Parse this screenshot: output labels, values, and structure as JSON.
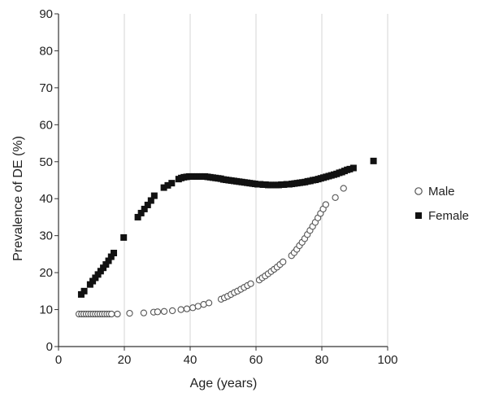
{
  "chart_data": {
    "type": "scatter",
    "title": "",
    "xlabel": "Age (years)",
    "ylabel": "Prevalence of DE (%)",
    "xlim": [
      0,
      100
    ],
    "ylim": [
      0,
      90
    ],
    "x_ticks": [
      0,
      20,
      40,
      60,
      80,
      100
    ],
    "y_ticks": [
      0,
      10,
      20,
      30,
      40,
      50,
      60,
      70,
      80,
      90
    ],
    "grid": "vertical",
    "legend_position": "right",
    "series": [
      {
        "name": "Male",
        "marker": "open-circle",
        "color": "#555555",
        "points": [
          [
            6.2,
            8.8
          ],
          [
            7.0,
            8.8
          ],
          [
            7.7,
            8.8
          ],
          [
            8.4,
            8.8
          ],
          [
            9.1,
            8.8
          ],
          [
            9.8,
            8.8
          ],
          [
            10.5,
            8.8
          ],
          [
            11.2,
            8.8
          ],
          [
            11.9,
            8.8
          ],
          [
            12.6,
            8.8
          ],
          [
            13.3,
            8.8
          ],
          [
            14.0,
            8.8
          ],
          [
            14.7,
            8.8
          ],
          [
            15.4,
            8.8
          ],
          [
            16.1,
            8.8
          ],
          [
            17.9,
            8.8
          ],
          [
            21.6,
            9.0
          ],
          [
            25.9,
            9.1
          ],
          [
            28.9,
            9.3
          ],
          [
            30.1,
            9.4
          ],
          [
            32.1,
            9.5
          ],
          [
            34.6,
            9.7
          ],
          [
            37.2,
            10.0
          ],
          [
            39.0,
            10.2
          ],
          [
            40.8,
            10.5
          ],
          [
            42.4,
            10.9
          ],
          [
            44.1,
            11.4
          ],
          [
            45.7,
            11.8
          ],
          [
            49.4,
            12.8
          ],
          [
            50.4,
            13.2
          ],
          [
            51.4,
            13.6
          ],
          [
            52.4,
            14.1
          ],
          [
            53.4,
            14.6
          ],
          [
            54.4,
            15.0
          ],
          [
            55.4,
            15.5
          ],
          [
            56.4,
            16.0
          ],
          [
            57.4,
            16.5
          ],
          [
            58.4,
            17.0
          ],
          [
            61.0,
            18.0
          ],
          [
            61.9,
            18.6
          ],
          [
            62.8,
            19.1
          ],
          [
            63.7,
            19.7
          ],
          [
            64.6,
            20.3
          ],
          [
            65.5,
            20.9
          ],
          [
            66.4,
            21.5
          ],
          [
            67.3,
            22.2
          ],
          [
            68.2,
            22.9
          ],
          [
            70.8,
            24.6
          ],
          [
            71.6,
            25.4
          ],
          [
            72.4,
            26.3
          ],
          [
            73.2,
            27.3
          ],
          [
            74.0,
            28.2
          ],
          [
            74.8,
            29.2
          ],
          [
            75.6,
            30.3
          ],
          [
            76.4,
            31.4
          ],
          [
            77.2,
            32.5
          ],
          [
            78.0,
            33.6
          ],
          [
            78.8,
            34.8
          ],
          [
            79.6,
            36.0
          ],
          [
            80.4,
            37.2
          ],
          [
            81.2,
            38.4
          ],
          [
            84.1,
            40.3
          ],
          [
            86.6,
            42.8
          ]
        ]
      },
      {
        "name": "Female",
        "marker": "filled-square",
        "color": "#111111",
        "points": [
          [
            6.9,
            14.1
          ],
          [
            7.8,
            15.0
          ],
          [
            9.6,
            16.8
          ],
          [
            10.4,
            17.7
          ],
          [
            11.2,
            18.6
          ],
          [
            12.0,
            19.5
          ],
          [
            12.8,
            20.4
          ],
          [
            13.6,
            21.3
          ],
          [
            14.4,
            22.2
          ],
          [
            15.2,
            23.2
          ],
          [
            16.0,
            24.3
          ],
          [
            16.8,
            25.3
          ],
          [
            19.8,
            29.5
          ],
          [
            24.1,
            35.0
          ],
          [
            25.1,
            36.1
          ],
          [
            26.1,
            37.2
          ],
          [
            27.1,
            38.3
          ],
          [
            28.1,
            39.5
          ],
          [
            29.1,
            40.8
          ],
          [
            32.0,
            43.0
          ],
          [
            33.2,
            43.6
          ],
          [
            34.4,
            44.2
          ],
          [
            36.5,
            45.3
          ],
          [
            37.3,
            45.6
          ],
          [
            38.1,
            45.8
          ],
          [
            38.9,
            45.9
          ],
          [
            39.7,
            46.0
          ],
          [
            40.5,
            46.0
          ],
          [
            41.3,
            46.0
          ],
          [
            42.1,
            46.0
          ],
          [
            42.9,
            46.0
          ],
          [
            43.7,
            46.0
          ],
          [
            44.5,
            46.0
          ],
          [
            45.3,
            45.9
          ],
          [
            46.1,
            45.8
          ],
          [
            46.9,
            45.7
          ],
          [
            47.7,
            45.6
          ],
          [
            48.5,
            45.5
          ],
          [
            49.3,
            45.4
          ],
          [
            50.1,
            45.2
          ],
          [
            50.9,
            45.1
          ],
          [
            51.7,
            45.0
          ],
          [
            52.5,
            44.9
          ],
          [
            53.3,
            44.8
          ],
          [
            54.1,
            44.7
          ],
          [
            54.9,
            44.6
          ],
          [
            55.7,
            44.5
          ],
          [
            56.5,
            44.4
          ],
          [
            57.3,
            44.3
          ],
          [
            58.1,
            44.2
          ],
          [
            58.9,
            44.1
          ],
          [
            59.7,
            44.0
          ],
          [
            60.5,
            43.9
          ],
          [
            61.3,
            43.9
          ],
          [
            62.1,
            43.8
          ],
          [
            62.9,
            43.8
          ],
          [
            63.7,
            43.7
          ],
          [
            64.5,
            43.7
          ],
          [
            65.3,
            43.7
          ],
          [
            66.1,
            43.7
          ],
          [
            66.9,
            43.7
          ],
          [
            67.7,
            43.8
          ],
          [
            68.5,
            43.8
          ],
          [
            69.3,
            43.9
          ],
          [
            70.1,
            43.9
          ],
          [
            70.9,
            44.0
          ],
          [
            71.7,
            44.1
          ],
          [
            72.5,
            44.2
          ],
          [
            73.3,
            44.3
          ],
          [
            74.1,
            44.4
          ],
          [
            74.9,
            44.5
          ],
          [
            75.7,
            44.7
          ],
          [
            76.5,
            44.8
          ],
          [
            77.3,
            45.0
          ],
          [
            78.1,
            45.1
          ],
          [
            78.9,
            45.3
          ],
          [
            79.7,
            45.5
          ],
          [
            80.5,
            45.7
          ],
          [
            81.3,
            45.9
          ],
          [
            82.1,
            46.1
          ],
          [
            82.9,
            46.3
          ],
          [
            83.7,
            46.5
          ],
          [
            84.5,
            46.7
          ],
          [
            85.3,
            47.0
          ],
          [
            86.1,
            47.2
          ],
          [
            86.9,
            47.5
          ],
          [
            87.7,
            47.8
          ],
          [
            88.5,
            48.0
          ],
          [
            89.6,
            48.3
          ],
          [
            95.7,
            50.2
          ]
        ]
      }
    ]
  }
}
